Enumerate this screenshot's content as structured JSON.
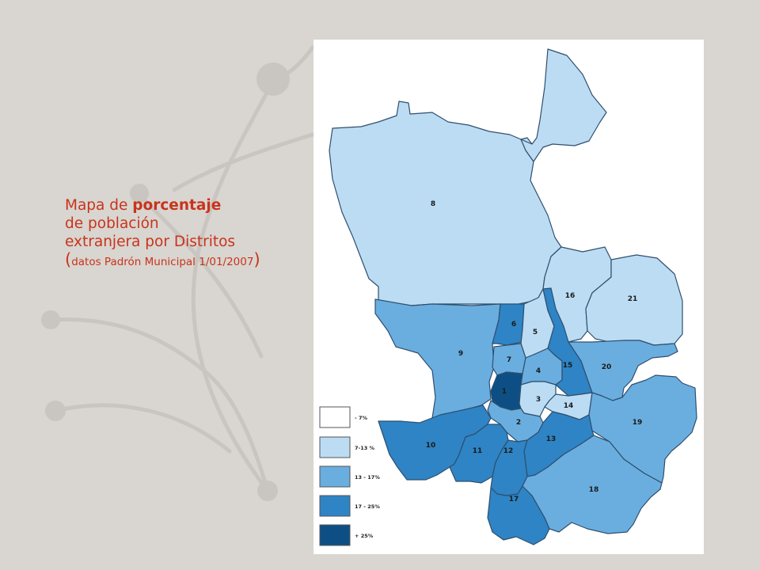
{
  "caption": {
    "line1_a": "Mapa de ",
    "line1_b": "porcentaje",
    "line2": "de población",
    "line3": "extranjera por Distritos",
    "line4_open": "(",
    "line4_text": "datos Padrón Municipal 1/01/2007",
    "line4_close": ")"
  },
  "colors": {
    "background": "#d9d5d0",
    "caption_text": "#c8341c",
    "decoration": "#c9c5c0",
    "class_1": "#ffffff",
    "class_2": "#bcdcf3",
    "class_3": "#6aaee0",
    "class_4": "#2e84c5",
    "class_5": "#0d4f84",
    "border": "#2f4f6e"
  },
  "legend": [
    {
      "label": "- 7%",
      "class": 1
    },
    {
      "label": "7-13 %",
      "class": 2
    },
    {
      "label": "13 - 17%",
      "class": 3
    },
    {
      "label": "17 - 25%",
      "class": 4
    },
    {
      "label": "+ 25%",
      "class": 5
    }
  ],
  "districts": [
    {
      "id": "8",
      "class": 2
    },
    {
      "id": "16",
      "class": 2
    },
    {
      "id": "21",
      "class": 2
    },
    {
      "id": "5",
      "class": 2
    },
    {
      "id": "3",
      "class": 2
    },
    {
      "id": "14",
      "class": 2
    },
    {
      "id": "9",
      "class": 3
    },
    {
      "id": "7",
      "class": 3
    },
    {
      "id": "4",
      "class": 3
    },
    {
      "id": "2",
      "class": 3
    },
    {
      "id": "20",
      "class": 3
    },
    {
      "id": "19",
      "class": 3
    },
    {
      "id": "18",
      "class": 3
    },
    {
      "id": "6",
      "class": 4
    },
    {
      "id": "15",
      "class": 4
    },
    {
      "id": "10",
      "class": 4
    },
    {
      "id": "11",
      "class": 4
    },
    {
      "id": "12",
      "class": 4
    },
    {
      "id": "13",
      "class": 4
    },
    {
      "id": "17",
      "class": 4
    },
    {
      "id": "1",
      "class": 5
    }
  ]
}
